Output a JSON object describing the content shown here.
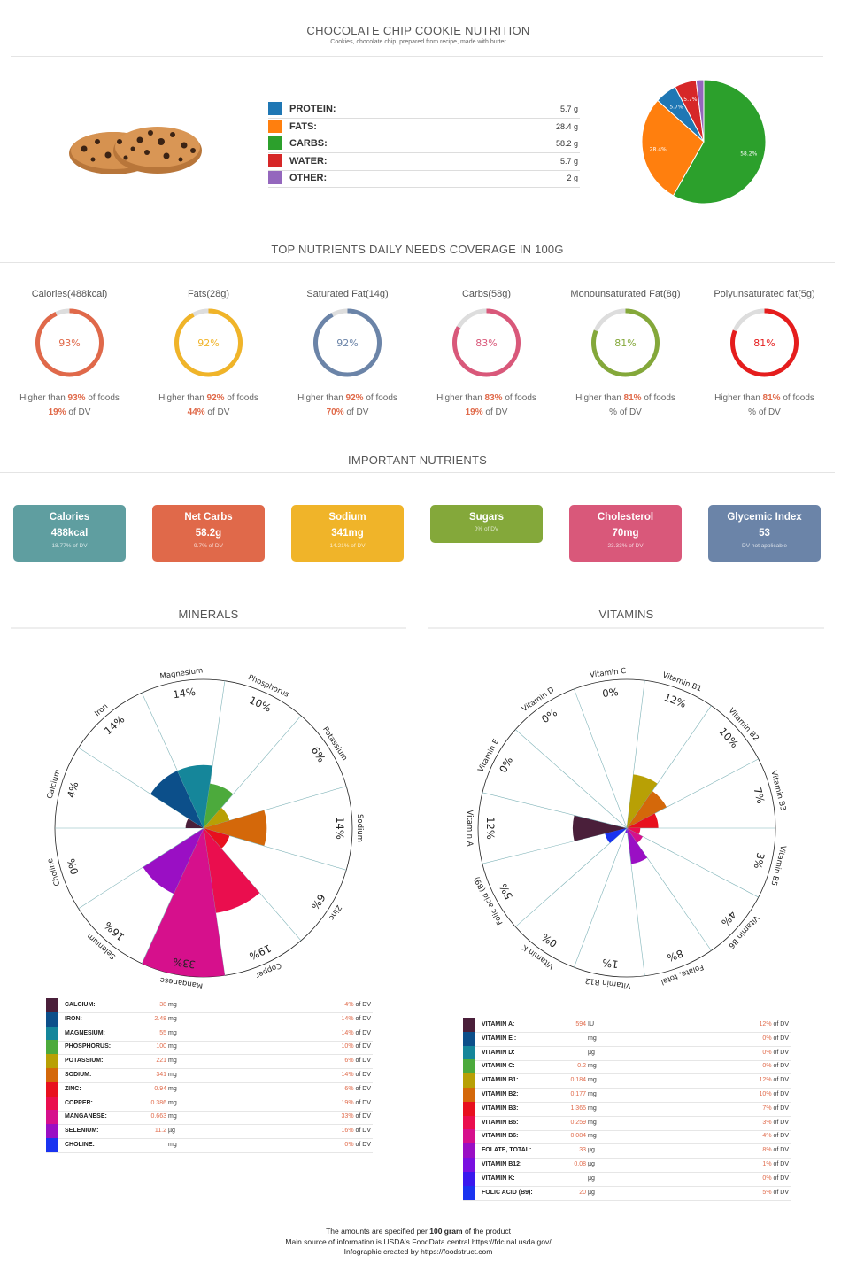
{
  "header": {
    "title": "CHOCOLATE CHIP COOKIE NUTRITION",
    "subtitle": "Cookies, chocolate chip, prepared from recipe, made with butter"
  },
  "macros": [
    {
      "name": "PROTEIN:",
      "value": "5.7 g",
      "color": "#1f77b4"
    },
    {
      "name": "FATS:",
      "value": "28.4 g",
      "color": "#ff7f0e"
    },
    {
      "name": "CARBS:",
      "value": "58.2 g",
      "color": "#2ca02c"
    },
    {
      "name": "WATER:",
      "value": "5.7 g",
      "color": "#d62728"
    },
    {
      "name": "OTHER:",
      "value": "2 g",
      "color": "#9467bd"
    }
  ],
  "pie_labels": [
    "5.7%",
    "28.4%",
    "58.2%",
    "5.7%",
    ""
  ],
  "coverage": {
    "title": "TOP NUTRIENTS DAILY NEEDS COVERAGE IN 100G",
    "rings": [
      {
        "label": "Calories(488kcal)",
        "pct": 93,
        "pct_text": "93%",
        "color": "#e0694a",
        "line1_pre": "Higher than ",
        "line1_hl": "93%",
        "line1_post": " of foods",
        "line2_hl": "19%",
        "line2_post": " of DV"
      },
      {
        "label": "Fats(28g)",
        "pct": 92,
        "pct_text": "92%",
        "color": "#f0b429",
        "line1_pre": "Higher than ",
        "line1_hl": "92%",
        "line1_post": " of foods",
        "line2_hl": "44%",
        "line2_post": " of DV"
      },
      {
        "label": "Saturated Fat(14g)",
        "pct": 92,
        "pct_text": "92%",
        "color": "#6b84a8",
        "line1_pre": "Higher than ",
        "line1_hl": "92%",
        "line1_post": " of foods",
        "line2_hl": "70%",
        "line2_post": " of DV"
      },
      {
        "label": "Carbs(58g)",
        "pct": 83,
        "pct_text": "83%",
        "color": "#d9587a",
        "line1_pre": "Higher than ",
        "line1_hl": "83%",
        "line1_post": " of foods",
        "line2_hl": "19%",
        "line2_post": " of DV"
      },
      {
        "label": "Monounsaturated Fat(8g)",
        "pct": 81,
        "pct_text": "81%",
        "color": "#84a83a",
        "line1_pre": "Higher than ",
        "line1_hl": "81%",
        "line1_post": " of foods",
        "line2_hl": "",
        "line2_post": "% of DV"
      },
      {
        "label": "Polyunsaturated fat(5g)",
        "pct": 81,
        "pct_text": "81%",
        "color": "#e51d1d",
        "line1_pre": "Higher than ",
        "line1_hl": "81%",
        "line1_post": " of foods",
        "line2_hl": "",
        "line2_post": "% of DV"
      }
    ]
  },
  "important": {
    "title": "IMPORTANT NUTRIENTS",
    "cards": [
      {
        "title": "Calories",
        "value": "488kcal",
        "dv": "18.77% of DV",
        "color": "#5f9ea0"
      },
      {
        "title": "Net Carbs",
        "value": "58.2g",
        "dv": "9.7% of DV",
        "color": "#e0694a"
      },
      {
        "title": "Sodium",
        "value": "341mg",
        "dv": "14.21% of DV",
        "color": "#f0b429"
      },
      {
        "title": "Sugars",
        "value": "",
        "dv": "0% of DV",
        "color": "#84a83a"
      },
      {
        "title": "Cholesterol",
        "value": "70mg",
        "dv": "23.33% of DV",
        "color": "#d9587a"
      },
      {
        "title": "Glycemic Index",
        "value": "53",
        "dv": "DV not applicable",
        "color": "#6b84a8"
      }
    ]
  },
  "minerals": {
    "title": "MINERALS",
    "items": [
      {
        "name": "CALCIUM:",
        "label": "Calcium",
        "amount": "38",
        "unit": "mg",
        "dv_pct": 4,
        "dv": "4%",
        "color": "#4a1f3a"
      },
      {
        "name": "IRON:",
        "label": "Iron",
        "amount": "2.48",
        "unit": "mg",
        "dv_pct": 14,
        "dv": "14%",
        "color": "#0c4f8a"
      },
      {
        "name": "MAGNESIUM:",
        "label": "Magnesium",
        "amount": "55",
        "unit": "mg",
        "dv_pct": 14,
        "dv": "14%",
        "color": "#15869a"
      },
      {
        "name": "PHOSPHORUS:",
        "label": "Phosphorus",
        "amount": "100",
        "unit": "mg",
        "dv_pct": 10,
        "dv": "10%",
        "color": "#4caa3c"
      },
      {
        "name": "POTASSIUM:",
        "label": "Potassium",
        "amount": "221",
        "unit": "mg",
        "dv_pct": 6,
        "dv": "6%",
        "color": "#b8a005"
      },
      {
        "name": "SODIUM:",
        "label": "Sodium",
        "amount": "341",
        "unit": "mg",
        "dv_pct": 14,
        "dv": "14%",
        "color": "#d4680a"
      },
      {
        "name": "ZINC:",
        "label": "Zinc",
        "amount": "0.94",
        "unit": "mg",
        "dv_pct": 6,
        "dv": "6%",
        "color": "#e8101e"
      },
      {
        "name": "COPPER:",
        "label": "Copper",
        "amount": "0.386",
        "unit": "mg",
        "dv_pct": 19,
        "dv": "19%",
        "color": "#ea0e4e"
      },
      {
        "name": "MANGANESE:",
        "label": "Manganese",
        "amount": "0.663",
        "unit": "mg",
        "dv_pct": 33,
        "dv": "33%",
        "color": "#d6108c"
      },
      {
        "name": "SELENIUM:",
        "label": "Selenium",
        "amount": "11.2",
        "unit": "µg",
        "dv_pct": 16,
        "dv": "16%",
        "color": "#9a0fc4"
      },
      {
        "name": "CHOLINE:",
        "label": "Choline",
        "amount": "",
        "unit": "mg",
        "dv_pct": 0,
        "dv": "0%",
        "color": "#1a33f0"
      }
    ]
  },
  "vitamins": {
    "title": "VITAMINS",
    "items": [
      {
        "name": "VITAMIN A:",
        "label": "Vitamin A",
        "amount": "594",
        "unit": "IU",
        "dv_pct": 12,
        "dv": "12%",
        "color": "#4a1f3a"
      },
      {
        "name": "VITAMIN E :",
        "label": "Vitamin E",
        "amount": "",
        "unit": "mg",
        "dv_pct": 0,
        "dv": "0%",
        "color": "#0c4f8a"
      },
      {
        "name": "VITAMIN D:",
        "label": "Vitamin D",
        "amount": "",
        "unit": "µg",
        "dv_pct": 0,
        "dv": "0%",
        "color": "#15869a"
      },
      {
        "name": "VITAMIN C:",
        "label": "Vitamin C",
        "amount": "0.2",
        "unit": "mg",
        "dv_pct": 0,
        "dv": "0%",
        "color": "#4caa3c"
      },
      {
        "name": "VITAMIN B1:",
        "label": "Vitamin B1",
        "amount": "0.184",
        "unit": "mg",
        "dv_pct": 12,
        "dv": "12%",
        "color": "#b8a005"
      },
      {
        "name": "VITAMIN B2:",
        "label": "Vitamin B2",
        "amount": "0.177",
        "unit": "mg",
        "dv_pct": 10,
        "dv": "10%",
        "color": "#d4680a"
      },
      {
        "name": "VITAMIN B3:",
        "label": "Vitamin B3",
        "amount": "1.365",
        "unit": "mg",
        "dv_pct": 7,
        "dv": "7%",
        "color": "#e8101e"
      },
      {
        "name": "VITAMIN B5:",
        "label": "Vitamin B5",
        "amount": "0.259",
        "unit": "mg",
        "dv_pct": 3,
        "dv": "3%",
        "color": "#ea0e4e"
      },
      {
        "name": "VITAMIN B6:",
        "label": "Vitamin B6",
        "amount": "0.084",
        "unit": "mg",
        "dv_pct": 4,
        "dv": "4%",
        "color": "#d6108c"
      },
      {
        "name": "FOLATE, TOTAL:",
        "label": "Folate, total",
        "amount": "33",
        "unit": "µg",
        "dv_pct": 8,
        "dv": "8%",
        "color": "#9a0fc4"
      },
      {
        "name": "VITAMIN B12:",
        "label": "Vitamin B12",
        "amount": "0.08",
        "unit": "µg",
        "dv_pct": 1,
        "dv": "1%",
        "color": "#7a10e0"
      },
      {
        "name": "VITAMIN K:",
        "label": "Vitamin K",
        "amount": "",
        "unit": "µg",
        "dv_pct": 0,
        "dv": "0%",
        "color": "#3a18ee"
      },
      {
        "name": "FOLIC ACID (B9):",
        "label": "Folic acid (B9)",
        "amount": "20",
        "unit": "µg",
        "dv_pct": 5,
        "dv": "5%",
        "color": "#1a33f0"
      }
    ]
  },
  "dv_suffix": " of DV",
  "footer": {
    "line1_pre": "The amounts are specified per ",
    "line1_bold": "100 gram",
    "line1_post": " of the product",
    "line2": "Main source of information is USDA's FoodData central https://fdc.nal.usda.gov/",
    "line3": "Infographic created by https://foodstruct.com"
  },
  "chart_data": [
    {
      "type": "pie",
      "title": "",
      "categories": [
        "Protein",
        "Fats",
        "Carbs",
        "Water",
        "Other"
      ],
      "values": [
        5.7,
        28.4,
        58.2,
        5.7,
        2
      ],
      "colors": [
        "#1f77b4",
        "#ff7f0e",
        "#2ca02c",
        "#d62728",
        "#9467bd"
      ]
    },
    {
      "type": "polar-area",
      "title": "MINERALS",
      "categories": [
        "Calcium",
        "Iron",
        "Magnesium",
        "Phosphorus",
        "Potassium",
        "Sodium",
        "Zinc",
        "Copper",
        "Manganese",
        "Selenium",
        "Choline"
      ],
      "values": [
        4,
        14,
        14,
        10,
        6,
        14,
        6,
        19,
        33,
        16,
        0
      ],
      "rlim": [
        0,
        33
      ]
    },
    {
      "type": "polar-area",
      "title": "VITAMINS",
      "categories": [
        "Vitamin A",
        "Vitamin E",
        "Vitamin D",
        "Vitamin C",
        "Vitamin B1",
        "Vitamin B2",
        "Vitamin B3",
        "Vitamin B5",
        "Vitamin B6",
        "Folate, total",
        "Vitamin B12",
        "Vitamin K",
        "Folic acid (B9)"
      ],
      "values": [
        12,
        0,
        0,
        0,
        12,
        10,
        7,
        3,
        4,
        8,
        1,
        0,
        5
      ],
      "rlim": [
        0,
        33
      ]
    }
  ]
}
